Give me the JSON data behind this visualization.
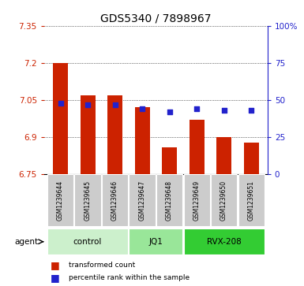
{
  "title": "GDS5340 / 7898967",
  "samples": [
    "GSM1239644",
    "GSM1239645",
    "GSM1239646",
    "GSM1239647",
    "GSM1239648",
    "GSM1239649",
    "GSM1239650",
    "GSM1239651"
  ],
  "bar_values": [
    7.2,
    7.07,
    7.07,
    7.02,
    6.86,
    6.97,
    6.9,
    6.88
  ],
  "percentile_values": [
    48,
    47,
    47,
    44,
    42,
    44,
    43,
    43
  ],
  "ylim": [
    6.75,
    7.35
  ],
  "ylim_right": [
    0,
    100
  ],
  "yticks_left": [
    6.75,
    6.9,
    7.05,
    7.2,
    7.35
  ],
  "yticks_right": [
    0,
    25,
    50,
    75,
    100
  ],
  "ytick_labels_left": [
    "6.75",
    "6.9",
    "7.05",
    "7.2",
    "7.35"
  ],
  "ytick_labels_right": [
    "0",
    "25",
    "50",
    "75",
    "100%"
  ],
  "groups": [
    {
      "label": "control",
      "indices": [
        0,
        1,
        2
      ],
      "color": "#ccf0cc"
    },
    {
      "label": "JQ1",
      "indices": [
        3,
        4
      ],
      "color": "#99e699"
    },
    {
      "label": "RVX-208",
      "indices": [
        5,
        6,
        7
      ],
      "color": "#33cc33"
    }
  ],
  "bar_color": "#cc2200",
  "dot_color": "#2222cc",
  "sample_bg": "#cccccc",
  "agent_label": "agent",
  "legend_bar": "transformed count",
  "legend_dot": "percentile rank within the sample",
  "bar_width": 0.55,
  "dot_size": 25
}
